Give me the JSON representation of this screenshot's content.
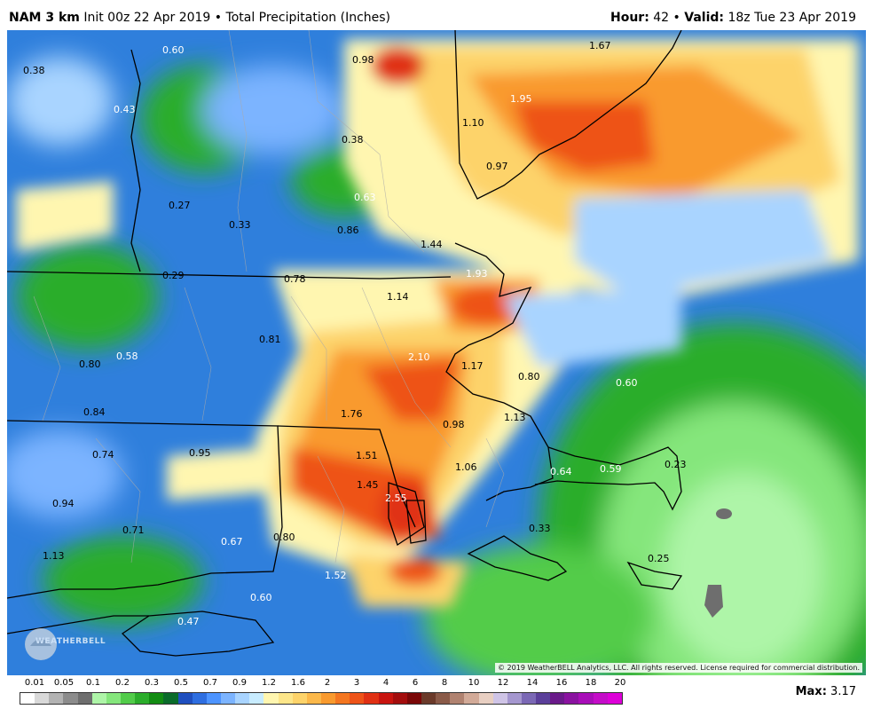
{
  "header": {
    "model": "NAM 3 km",
    "init": "Init 00z 22 Apr 2019",
    "separator": "•",
    "product": "Total Precipitation (Inches)",
    "hour_label": "Hour:",
    "hour_value": "42",
    "valid_label": "Valid:",
    "valid_value": "18z Tue 23 Apr 2019"
  },
  "map": {
    "copyright": "© 2019 WeatherBELL Analytics, LLC. All rights reserved. License required for commercial distribution.",
    "logo_text": "WEATHERBELL",
    "value_labels": [
      {
        "text": "0.38",
        "color": "#000000"
      },
      {
        "text": "0.60",
        "color": "#ffffff"
      },
      {
        "text": "0.98",
        "color": "#000000"
      },
      {
        "text": "1.67",
        "color": "#000000"
      },
      {
        "text": "0.43",
        "color": "#ffffff"
      },
      {
        "text": "1.95",
        "color": "#ffffff"
      },
      {
        "text": "0.38",
        "color": "#000000"
      },
      {
        "text": "1.10",
        "color": "#000000"
      },
      {
        "text": "0.97",
        "color": "#000000"
      },
      {
        "text": "0.27",
        "color": "#000000"
      },
      {
        "text": "0.33",
        "color": "#000000"
      },
      {
        "text": "0.63",
        "color": "#ffffff"
      },
      {
        "text": "0.86",
        "color": "#000000"
      },
      {
        "text": "1.44",
        "color": "#000000"
      },
      {
        "text": "0.29",
        "color": "#000000"
      },
      {
        "text": "0.78",
        "color": "#000000"
      },
      {
        "text": "1.93",
        "color": "#ffffff"
      },
      {
        "text": "1.14",
        "color": "#000000"
      },
      {
        "text": "0.81",
        "color": "#000000"
      },
      {
        "text": "2.10",
        "color": "#ffffff"
      },
      {
        "text": "0.80",
        "color": "#000000"
      },
      {
        "text": "0.58",
        "color": "#ffffff"
      },
      {
        "text": "1.17",
        "color": "#000000"
      },
      {
        "text": "0.80",
        "color": "#000000"
      },
      {
        "text": "0.60",
        "color": "#ffffff"
      },
      {
        "text": "0.84",
        "color": "#000000"
      },
      {
        "text": "1.76",
        "color": "#000000"
      },
      {
        "text": "0.98",
        "color": "#000000"
      },
      {
        "text": "1.13",
        "color": "#000000"
      },
      {
        "text": "0.74",
        "color": "#000000"
      },
      {
        "text": "0.95",
        "color": "#000000"
      },
      {
        "text": "1.51",
        "color": "#000000"
      },
      {
        "text": "1.06",
        "color": "#000000"
      },
      {
        "text": "0.64",
        "color": "#ffffff"
      },
      {
        "text": "0.59",
        "color": "#ffffff"
      },
      {
        "text": "0.23",
        "color": "#000000"
      },
      {
        "text": "1.45",
        "color": "#000000"
      },
      {
        "text": "2.55",
        "color": "#ffffff"
      },
      {
        "text": "0.94",
        "color": "#000000"
      },
      {
        "text": "0.33",
        "color": "#000000"
      },
      {
        "text": "0.71",
        "color": "#000000"
      },
      {
        "text": "0.67",
        "color": "#ffffff"
      },
      {
        "text": "0.80",
        "color": "#000000"
      },
      {
        "text": "0.25",
        "color": "#000000"
      },
      {
        "text": "1.13",
        "color": "#000000"
      },
      {
        "text": "1.52",
        "color": "#ffffff"
      },
      {
        "text": "0.60",
        "color": "#ffffff"
      },
      {
        "text": "0.47",
        "color": "#ffffff"
      }
    ]
  },
  "legend": {
    "labels": [
      "0.01",
      "0.05",
      "0.1",
      "0.2",
      "0.3",
      "0.5",
      "0.7",
      "0.9",
      "1.2",
      "1.6",
      "2",
      "3",
      "4",
      "6",
      "8",
      "10",
      "12",
      "14",
      "16",
      "18",
      "20"
    ],
    "colors": [
      "#ffffff",
      "#d9d9d9",
      "#b3b3b3",
      "#8c8c8c",
      "#6e6e6e",
      "#aef5a8",
      "#85e67c",
      "#52cc4a",
      "#2bad2b",
      "#128c12",
      "#0a6b2a",
      "#1f4fbf",
      "#2e6ee0",
      "#4d94ff",
      "#7cb4ff",
      "#a9d4ff",
      "#c8ecff",
      "#fff6b0",
      "#fde68a",
      "#fdd36a",
      "#fbb84a",
      "#f99a2e",
      "#f47620",
      "#ee5318",
      "#e03013",
      "#c8140f",
      "#a30d0d",
      "#7a0707",
      "#6b3a2a",
      "#8a5a48",
      "#b08270",
      "#d2aa98",
      "#e8cfc2",
      "#cfc4e6",
      "#a597cf",
      "#7b68b5",
      "#5b3f9a",
      "#6a1a8a",
      "#8a12a0",
      "#a80db8",
      "#c40cc8",
      "#dd00d8"
    ]
  },
  "max": {
    "label": "Max",
    "value": "3.17"
  }
}
